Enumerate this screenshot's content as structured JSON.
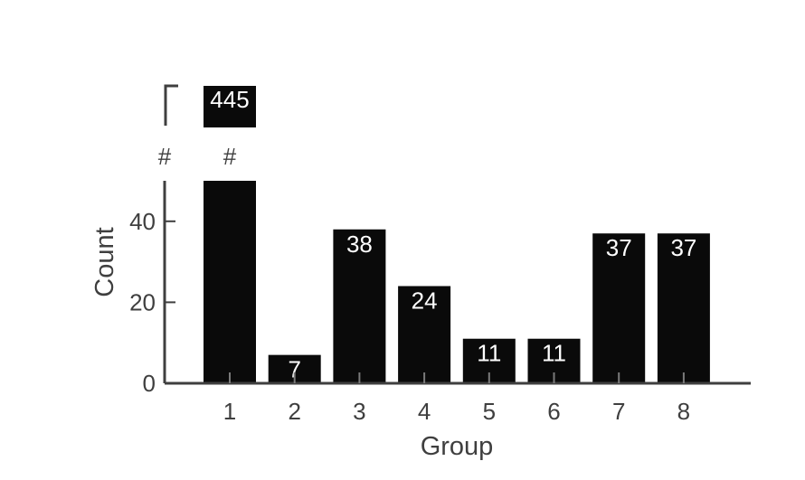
{
  "chart_data": {
    "type": "bar",
    "categories": [
      "1",
      "2",
      "3",
      "4",
      "5",
      "6",
      "7",
      "8"
    ],
    "values": [
      445,
      7,
      38,
      24,
      11,
      11,
      37,
      37
    ],
    "data_labels": [
      "445",
      "7",
      "38",
      "24",
      "11",
      "11",
      "37",
      "37"
    ],
    "xlabel": "Group",
    "ylabel": "Count",
    "ylim": [
      0,
      50
    ],
    "yticks": [
      0,
      20,
      40
    ],
    "ytick_labels": [
      "0",
      "20",
      "40"
    ],
    "axis_break": {
      "after": 50,
      "marker": "#"
    },
    "bar_color": "#0a0a0a",
    "axis_color": "#3f3f3f",
    "label_color": "#ffffff",
    "grid": false,
    "legend": "none"
  }
}
